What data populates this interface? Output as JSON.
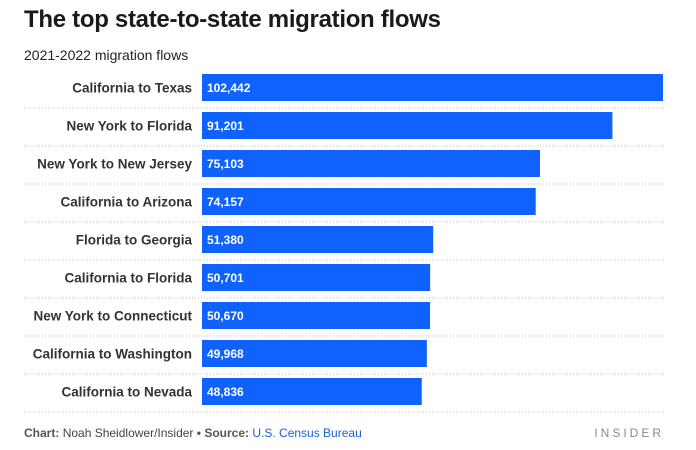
{
  "title": "The top state-to-state migration flows",
  "subtitle": "2021-2022 migration flows",
  "colors": {
    "bar": "#0f62fe",
    "bar_label": "#ffffff",
    "gridline": "#bdbdbd",
    "category_label": "#333333"
  },
  "chart_data": {
    "type": "bar",
    "orientation": "horizontal",
    "categories": [
      "California to Texas",
      "New York to Florida",
      "New York to New Jersey",
      "California to Arizona",
      "Florida to Georgia",
      "California to Florida",
      "New York to Connecticut",
      "California to Washington",
      "California to Nevada"
    ],
    "values": [
      102442,
      91201,
      75103,
      74157,
      51380,
      50701,
      50670,
      49968,
      48836
    ],
    "value_labels": [
      "102,442",
      "91,201",
      "75,103",
      "74,157",
      "51,380",
      "50,701",
      "50,670",
      "49,968",
      "48,836"
    ],
    "grid": "dotted row separators",
    "legend": "none"
  },
  "footer": {
    "chart_label": "Chart:",
    "chart_credit": "Noah Sheidlower/Insider",
    "separator": "•",
    "source_label": "Source:",
    "source_text": "U.S. Census Bureau"
  },
  "brand": "INSIDER"
}
